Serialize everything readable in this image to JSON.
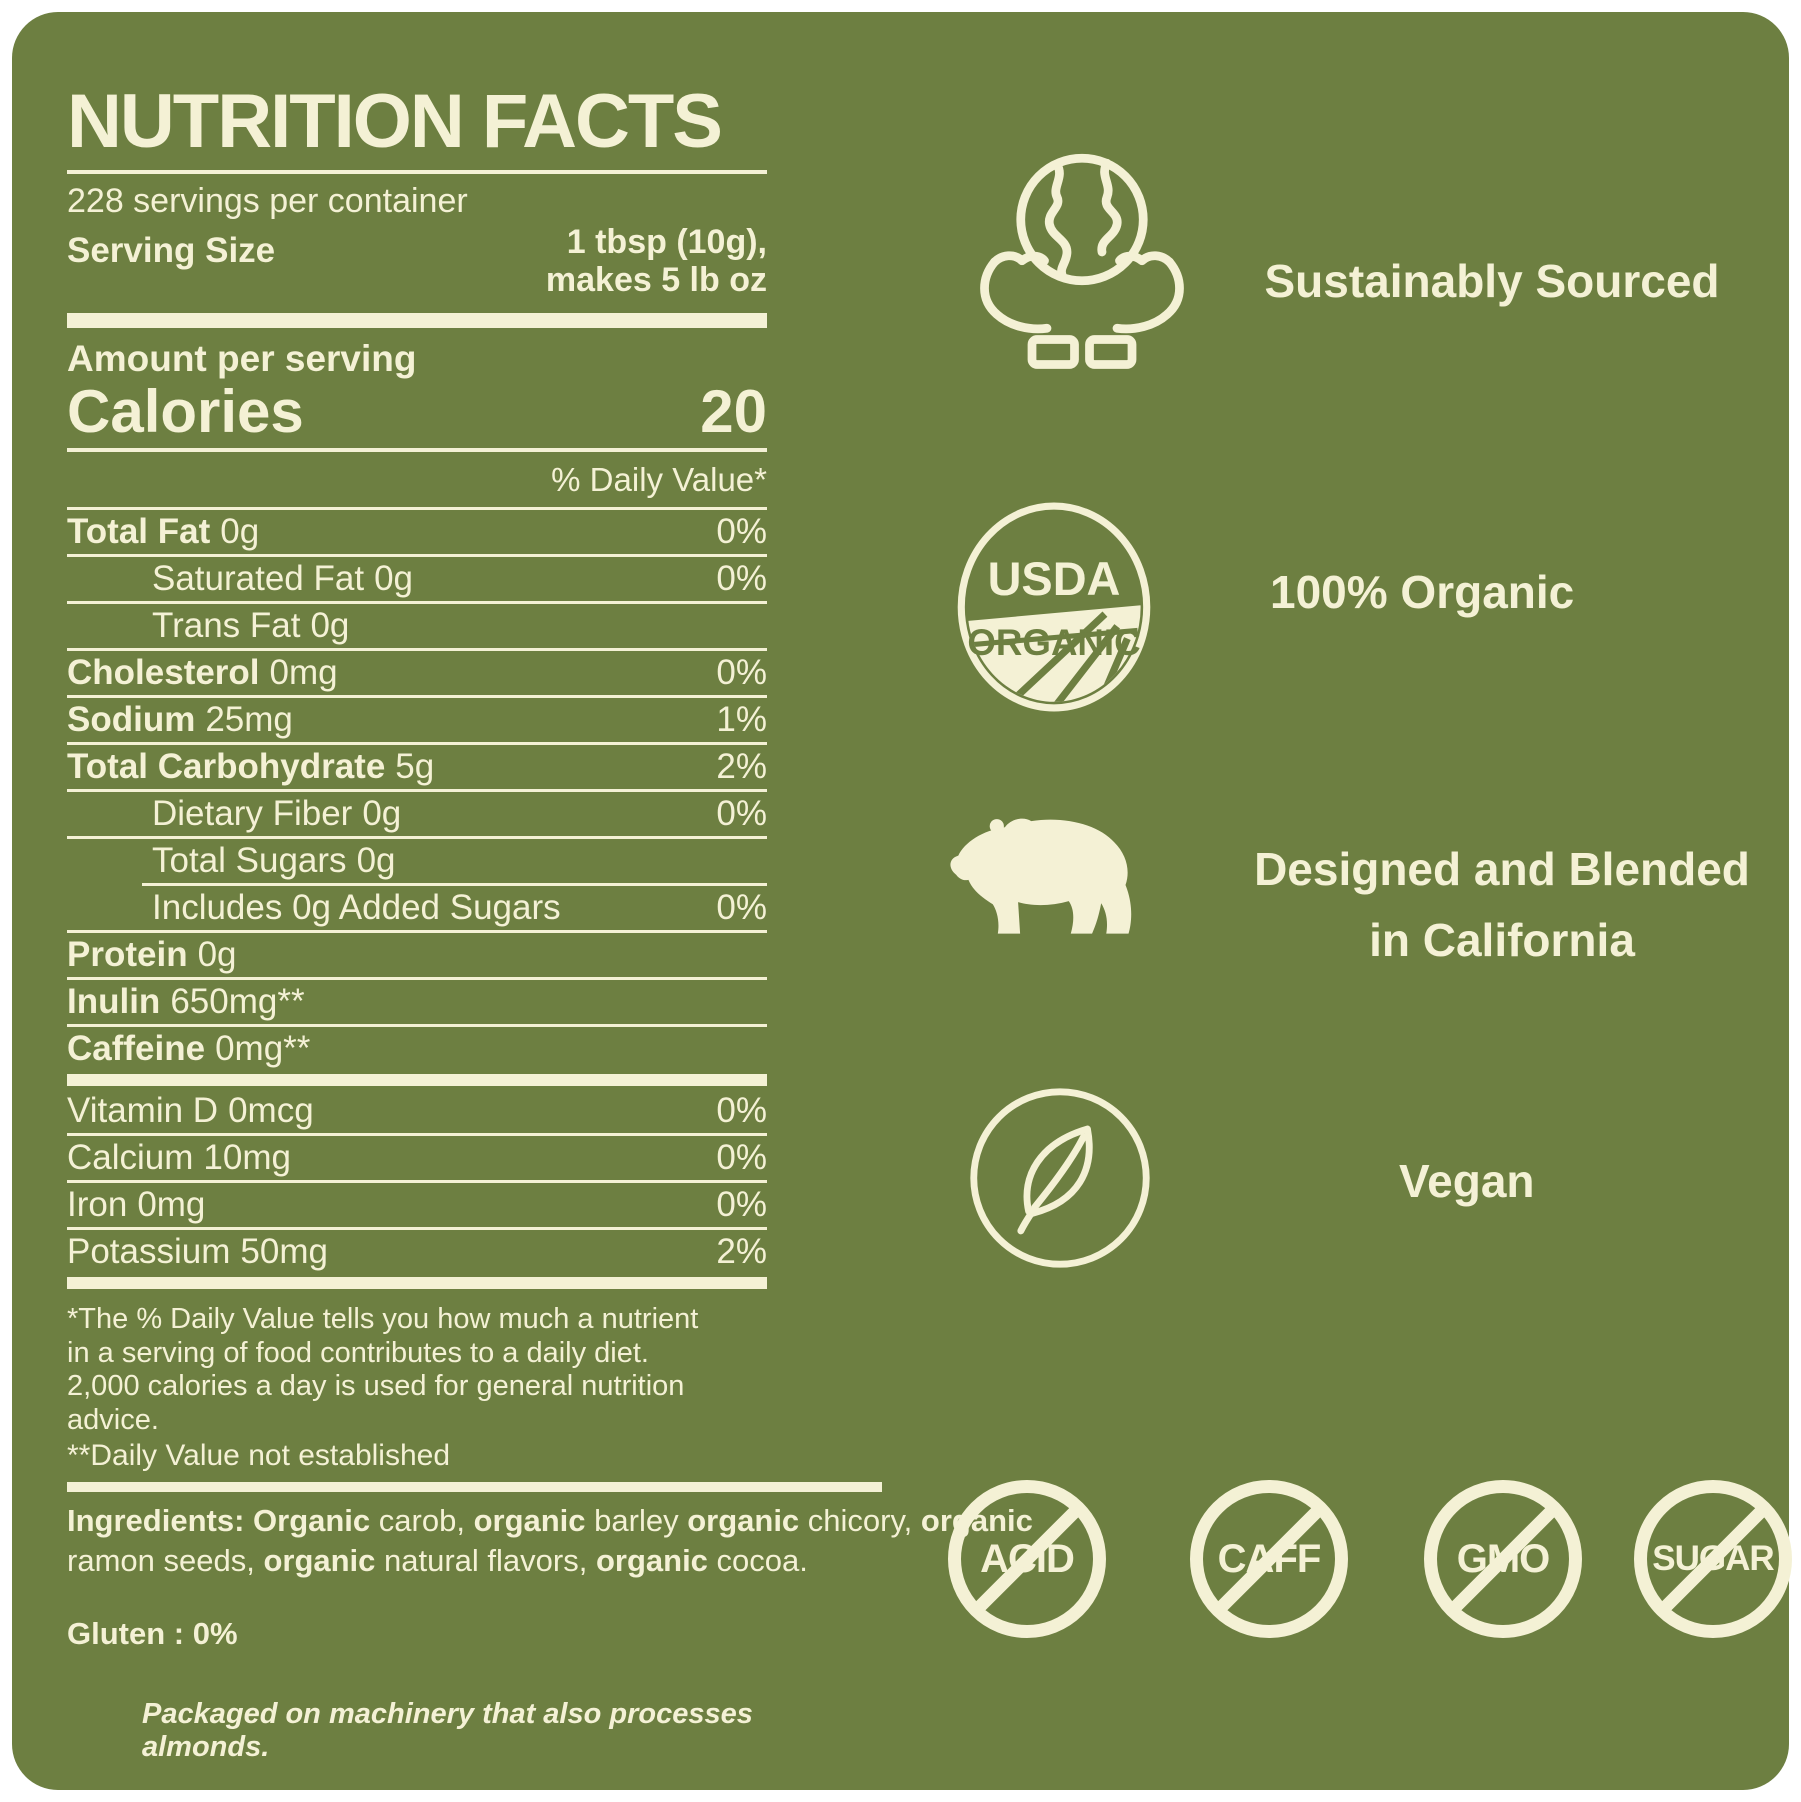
{
  "colors": {
    "panel_olive": "#6d7f41",
    "cream": "#f4f1d5"
  },
  "label": {
    "title": "NUTRITION FACTS",
    "servings_per_container": "228 servings per container",
    "serving_size_label": "Serving Size",
    "serving_size_value": [
      "1 tbsp (10g),",
      "makes 5 lb oz"
    ],
    "amount_per_serving": "Amount per serving",
    "calories_label": "Calories",
    "calories_value": "20",
    "daily_value_header": "% Daily Value*",
    "rows": [
      {
        "name": "Total Fat",
        "amount": "0g",
        "dv": "0%",
        "bold": true,
        "indent": 0
      },
      {
        "name": "Saturated Fat",
        "amount": "0g",
        "dv": "0%",
        "bold": false,
        "indent": 1
      },
      {
        "name": "Trans Fat",
        "amount": "0g",
        "dv": "",
        "bold": false,
        "indent": 1
      },
      {
        "name": "Cholesterol",
        "amount": "0mg",
        "dv": "0%",
        "bold": true,
        "indent": 0
      },
      {
        "name": "Sodium",
        "amount": "25mg",
        "dv": "1%",
        "bold": true,
        "indent": 0
      },
      {
        "name": "Total Carbohydrate",
        "amount": "5g",
        "dv": "2%",
        "bold": true,
        "indent": 0
      },
      {
        "name": "Dietary Fiber",
        "amount": "0g",
        "dv": "0%",
        "bold": false,
        "indent": 1
      },
      {
        "name": "Total Sugars",
        "amount": "0g",
        "dv": "",
        "bold": false,
        "indent": 1,
        "line_indent_after": true
      },
      {
        "name": "Includes 0g Added Sugars",
        "amount": "",
        "dv": "0%",
        "bold": false,
        "indent": 1
      },
      {
        "name": "Protein",
        "amount": "0g",
        "dv": "",
        "bold": true,
        "indent": 0
      },
      {
        "name": "Inulin",
        "amount": "650mg**",
        "dv": "",
        "bold": true,
        "indent": 0
      },
      {
        "name": "Caffeine",
        "amount": "0mg**",
        "dv": "",
        "bold": true,
        "indent": 0,
        "thick_after": true
      },
      {
        "name": "Vitamin D",
        "amount": "0mcg",
        "dv": "0%",
        "bold": false,
        "indent": 0
      },
      {
        "name": "Calcium",
        "amount": "10mg",
        "dv": "0%",
        "bold": false,
        "indent": 0
      },
      {
        "name": "Iron",
        "amount": "0mg",
        "dv": "0%",
        "bold": false,
        "indent": 0
      },
      {
        "name": "Potassium",
        "amount": "50mg",
        "dv": "2%",
        "bold": false,
        "indent": 0,
        "thick_after": true
      }
    ],
    "footnote": "*The % Daily Value tells you how much a nutrient in a serving of food contributes to a daily diet. 2,000 calories a day is used for general nutrition advice.",
    "footnote2": "**Daily Value not established",
    "ingredients_segments": [
      {
        "text": "Ingredients: Organic",
        "bold": true
      },
      {
        "text": " carob, ",
        "bold": false
      },
      {
        "text": "organic",
        "bold": true
      },
      {
        "text": " barley ",
        "bold": false
      },
      {
        "text": "organic",
        "bold": true
      },
      {
        "text": " chicory, ",
        "bold": false
      },
      {
        "text": "organic",
        "bold": true
      },
      {
        "text": " ramon seeds, ",
        "bold": false
      },
      {
        "text": "organic",
        "bold": true
      },
      {
        "text": " natural flavors, ",
        "bold": false
      },
      {
        "text": "organic",
        "bold": true
      },
      {
        "text": " cocoa.",
        "bold": false
      }
    ],
    "gluten": "Gluten : 0%",
    "allergen": "Packaged on machinery that also processes almonds."
  },
  "badges": {
    "sustainably_sourced": "Sustainably Sourced",
    "usda_top": "USDA",
    "usda_bottom": "ORGANIC",
    "organic": "100% Organic",
    "blended_line1": "Designed and Blended",
    "blended_line2": "in California",
    "vegan": "Vegan"
  },
  "no_badges": [
    "ACID",
    "CAFF",
    "GMO",
    "SUGAR"
  ]
}
